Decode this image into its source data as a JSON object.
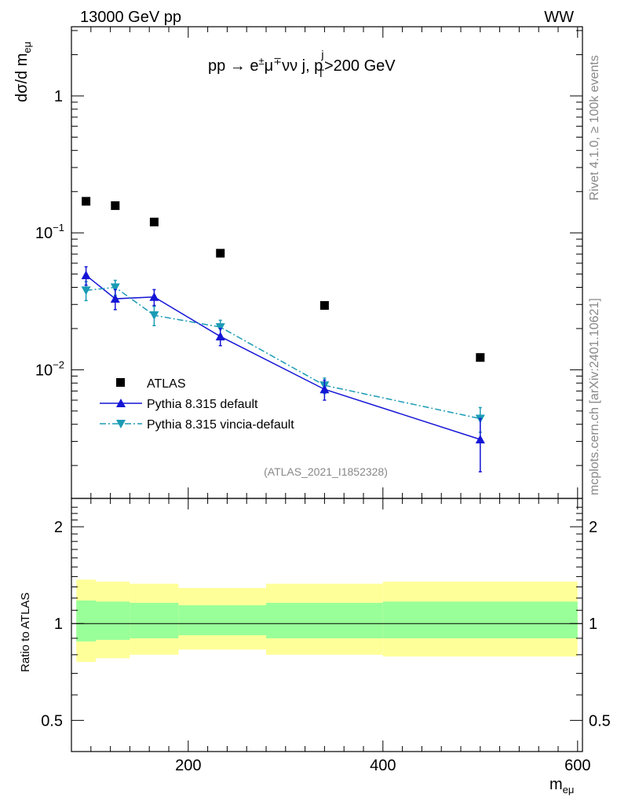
{
  "header": {
    "energy": "13000 GeV pp",
    "process": "WW"
  },
  "side_labels": {
    "rivet": "Rivet 4.1.0, ≥ 100k events",
    "site": "mcplots.cern.ch [arXiv:2401.10621]"
  },
  "colors": {
    "atlas": "#000000",
    "default": "#1515d6",
    "vincia": "#1b9bb5",
    "band_inner": "#99ff99",
    "band_outer": "#ffff99"
  },
  "chart_data": [
    {
      "type": "scatter",
      "title": "pp → e±μ∓νν j, p_T^j>200 GeV",
      "title_parts": {
        "pre": "pp  →  e",
        "pm": "±",
        "mu": "μ",
        "mp": "∓",
        "mid": "νν j, p",
        "sub": "T",
        "sup": "j",
        "post": ">200 GeV"
      },
      "ylabel_parts": {
        "main": "dσ/d m",
        "sub": "eμ"
      },
      "xlabel_parts": {
        "main": "m",
        "sub": "eμ"
      },
      "yscale": "log",
      "ylim": [
        0.00115,
        3.2
      ],
      "xlim": [
        80,
        605
      ],
      "x_ticks": [
        200,
        400,
        600
      ],
      "y_tick_labels": [
        {
          "value": 1,
          "base": "1",
          "exp": ""
        },
        {
          "value": 0.1,
          "base": "10",
          "exp": "−1"
        },
        {
          "value": 0.01,
          "base": "10",
          "exp": "−2"
        }
      ],
      "analysis_id": "(ATLAS_2021_I1852328)",
      "legend_position": "lower-left",
      "series": [
        {
          "name": "ATLAS",
          "style": "square",
          "x": [
            95,
            125,
            165,
            233,
            340,
            500
          ],
          "y": [
            0.17,
            0.158,
            0.12,
            0.071,
            0.0295,
            0.0123
          ]
        },
        {
          "name": "Pythia 8.315 default",
          "style": "triangle-up-solid",
          "x": [
            95,
            125,
            165,
            233,
            340,
            500
          ],
          "y": [
            0.049,
            0.033,
            0.034,
            0.0175,
            0.0072,
            0.0031
          ],
          "yerr_low": [
            0.0075,
            0.0055,
            0.0045,
            0.0025,
            0.0012,
            0.0013
          ],
          "yerr_high": [
            0.0075,
            0.0055,
            0.0045,
            0.0025,
            0.0012,
            0.0013
          ]
        },
        {
          "name": "Pythia 8.315 vincia-default",
          "style": "triangle-down-dashdot",
          "x": [
            95,
            125,
            165,
            233,
            340,
            500
          ],
          "y": [
            0.038,
            0.04,
            0.025,
            0.0205,
            0.0077,
            0.0044
          ],
          "yerr_low": [
            0.006,
            0.005,
            0.004,
            0.0025,
            0.001,
            0.0009
          ],
          "yerr_high": [
            0.006,
            0.005,
            0.004,
            0.0025,
            0.001,
            0.0009
          ]
        }
      ]
    },
    {
      "type": "area",
      "ylabel": "Ratio to ATLAS",
      "ylim": [
        0.4,
        2.45
      ],
      "yscale": "log",
      "xlim": [
        80,
        605
      ],
      "y_ticks": [
        0.5,
        1,
        2
      ],
      "reference_line": 1,
      "bands": {
        "edges": [
          80,
          105,
          140,
          190,
          280,
          400,
          605
        ],
        "outer_low": [
          0.76,
          0.78,
          0.8,
          0.83,
          0.8,
          0.79,
          0.79
        ],
        "outer_high": [
          1.37,
          1.35,
          1.33,
          1.29,
          1.33,
          1.35,
          1.35
        ],
        "inner_low": [
          0.88,
          0.89,
          0.9,
          0.92,
          0.9,
          0.9,
          0.9
        ],
        "inner_high": [
          1.18,
          1.17,
          1.16,
          1.14,
          1.16,
          1.17,
          1.17
        ]
      }
    }
  ]
}
